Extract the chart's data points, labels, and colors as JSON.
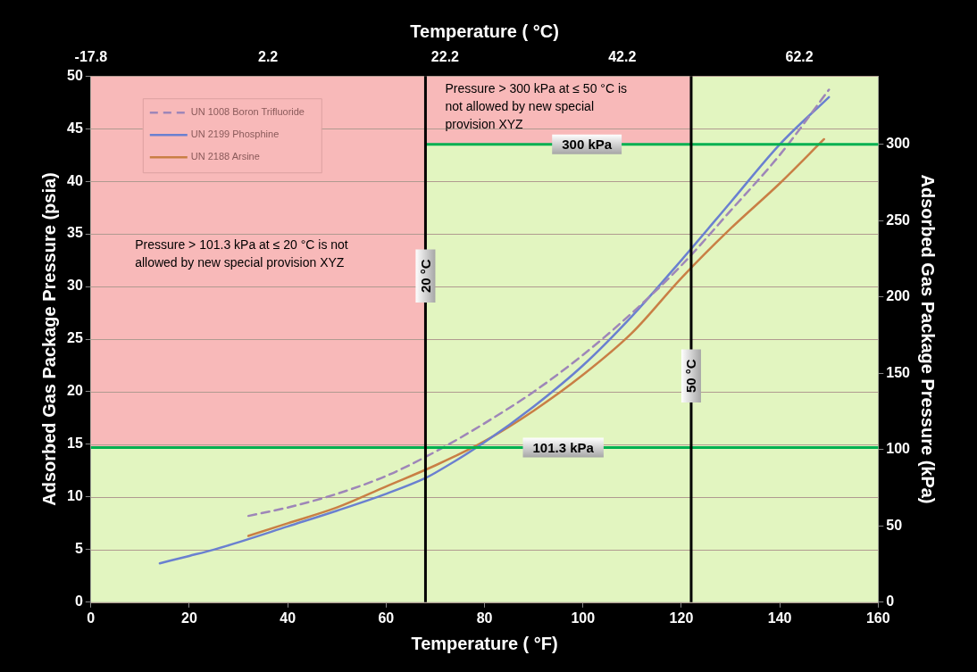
{
  "chart_data": {
    "type": "line",
    "xlabel": "Temperature ( °F)",
    "ylabel": "Adsorbed Gas Package Pressure (psia)",
    "y2label": "Adsorbed Gas Package Pressure (kPa)",
    "x2label": "Temperature ( °C)",
    "xlim": [
      0,
      160
    ],
    "xticks": [
      0,
      20,
      40,
      60,
      80,
      100,
      120,
      140,
      160
    ],
    "x2lim": [
      -17.8,
      71.1
    ],
    "x2ticks": [
      -17.8,
      2.2,
      22.2,
      42.2,
      62.2
    ],
    "ylim": [
      0,
      50
    ],
    "yticks": [
      0,
      5,
      10,
      15,
      20,
      25,
      30,
      35,
      40,
      45,
      50
    ],
    "y2lim": [
      0,
      344.7
    ],
    "y2ticks": [
      0,
      50,
      100,
      150,
      200,
      250,
      300
    ],
    "grid": "y",
    "legend": "top left",
    "marker": "none",
    "series": [
      {
        "name": "UN 1008 Boron Trifluoride",
        "color": "#9e86b8",
        "line_style": "dashed",
        "x": [
          32,
          40,
          50,
          60,
          70,
          80,
          90,
          100,
          110,
          120,
          130,
          140,
          150
        ],
        "values": [
          8.2,
          9.0,
          10.3,
          12.0,
          14.3,
          17.0,
          20.0,
          23.5,
          27.5,
          32.0,
          37.2,
          42.5,
          48.7
        ]
      },
      {
        "name": "UN 2199 Phosphine",
        "color": "#6a80d0",
        "x": [
          14,
          20,
          25,
          30,
          40,
          50,
          60,
          68,
          70,
          80,
          90,
          100,
          110,
          120,
          130,
          140,
          150
        ],
        "values": [
          3.7,
          4.4,
          5.0,
          5.7,
          7.2,
          8.7,
          10.3,
          11.8,
          12.3,
          15.2,
          18.6,
          22.5,
          27.2,
          32.5,
          38.0,
          43.5,
          48.0
        ]
      },
      {
        "name": "UN 2188 Arsine",
        "color": "#c97f45",
        "x": [
          32,
          40,
          50,
          60,
          70,
          80,
          90,
          100,
          110,
          120,
          130,
          140,
          149
        ],
        "values": [
          6.3,
          7.5,
          9.0,
          11.0,
          13.0,
          15.3,
          18.2,
          21.6,
          25.6,
          30.8,
          35.5,
          39.8,
          44.0
        ]
      }
    ],
    "ref_lines": [
      {
        "axis": "y2",
        "value": 101.3,
        "label": "101.3 kPa",
        "color": "#00b050"
      },
      {
        "axis": "y2",
        "value": 300,
        "label": "300 kPa",
        "color": "#00b050"
      },
      {
        "axis": "x",
        "value": 68,
        "label": "20 °C",
        "color": "#000000"
      },
      {
        "axis": "x",
        "value": 122,
        "label": "50 °C",
        "color": "#000000"
      }
    ],
    "bands": [
      {
        "axis": "y2",
        "from": 101.3,
        "to": 344.7,
        "color": "#f8b9b9"
      },
      {
        "axis": "y2",
        "from": 300,
        "to": 344.7,
        "color": "#f8b9b9"
      }
    ],
    "annotations": [
      "Pressure > 101.3 kPa at ≤ 20 °C is not allowed by new special provision XYZ",
      "Pressure > 300 kPa at ≤ 50 °C is not allowed by new special provision XYZ"
    ]
  }
}
